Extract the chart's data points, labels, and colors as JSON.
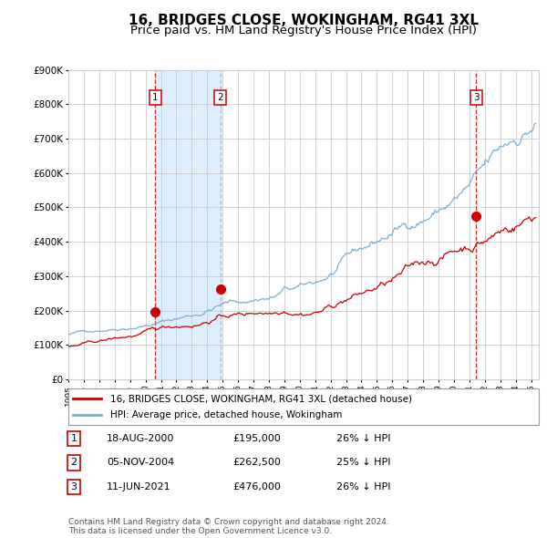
{
  "title": "16, BRIDGES CLOSE, WOKINGHAM, RG41 3XL",
  "subtitle": "Price paid vs. HM Land Registry's House Price Index (HPI)",
  "title_fontsize": 11,
  "subtitle_fontsize": 9.5,
  "ylim": [
    0,
    900000
  ],
  "yticks": [
    0,
    100000,
    200000,
    300000,
    400000,
    500000,
    600000,
    700000,
    800000,
    900000
  ],
  "ytick_labels": [
    "£0",
    "£100K",
    "£200K",
    "£300K",
    "£400K",
    "£500K",
    "£600K",
    "£700K",
    "£800K",
    "£900K"
  ],
  "hpi_color": "#7bafd4",
  "price_color": "#cc0000",
  "sale_marker_color": "#cc0000",
  "grid_color": "#cccccc",
  "background_color": "#ffffff",
  "plot_bg_color": "#ffffff",
  "shade_color": "#ddeeff",
  "sale1_year": 2000.63,
  "sale1_price": 195000,
  "sale1_label": "1",
  "sale2_year": 2004.85,
  "sale2_price": 262500,
  "sale2_label": "2",
  "sale3_year": 2021.44,
  "sale3_price": 476000,
  "sale3_label": "3",
  "legend_label_price": "16, BRIDGES CLOSE, WOKINGHAM, RG41 3XL (detached house)",
  "legend_label_hpi": "HPI: Average price, detached house, Wokingham",
  "table_rows": [
    [
      "1",
      "18-AUG-2000",
      "£195,000",
      "26% ↓ HPI"
    ],
    [
      "2",
      "05-NOV-2004",
      "£262,500",
      "25% ↓ HPI"
    ],
    [
      "3",
      "11-JUN-2021",
      "£476,000",
      "26% ↓ HPI"
    ]
  ],
  "footer": "Contains HM Land Registry data © Crown copyright and database right 2024.\nThis data is licensed under the Open Government Licence v3.0.",
  "xmin": 1995,
  "xmax": 2025.5
}
